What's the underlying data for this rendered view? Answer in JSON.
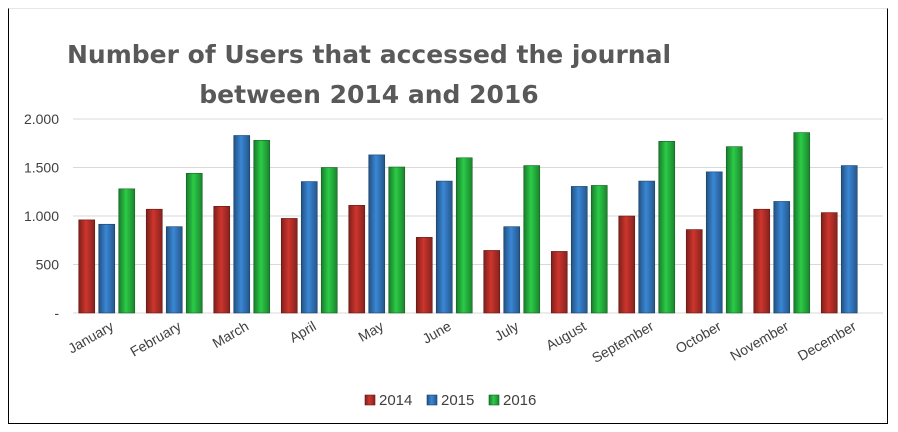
{
  "chart_data": {
    "type": "bar",
    "title_line1": "Number of Users that accessed the journal",
    "title_line2": "between 2014 and 2016",
    "xlabel": "",
    "ylabel": "",
    "ylim": [
      0,
      2000
    ],
    "yticks": [
      {
        "value": 0,
        "label": "-"
      },
      {
        "value": 500,
        "label": "500"
      },
      {
        "value": 1000,
        "label": "1.000"
      },
      {
        "value": 1500,
        "label": "1.500"
      },
      {
        "value": 2000,
        "label": "2.000"
      }
    ],
    "grid": true,
    "legend_position": "bottom",
    "categories": [
      "January",
      "February",
      "March",
      "April",
      "May",
      "June",
      "July",
      "August",
      "September",
      "October",
      "November",
      "December"
    ],
    "series": [
      {
        "name": "2014",
        "color": "#a52a24",
        "values": [
          960,
          1070,
          1100,
          975,
          1110,
          780,
          645,
          635,
          1000,
          860,
          1070,
          1035
        ]
      },
      {
        "name": "2015",
        "color": "#2e6cab",
        "values": [
          915,
          890,
          1830,
          1355,
          1630,
          1360,
          890,
          1305,
          1360,
          1455,
          1150,
          1520
        ]
      },
      {
        "name": "2016",
        "color": "#22a339",
        "values": [
          1280,
          1440,
          1780,
          1500,
          1505,
          1600,
          1520,
          1315,
          1770,
          1715,
          1860,
          null
        ]
      }
    ]
  }
}
